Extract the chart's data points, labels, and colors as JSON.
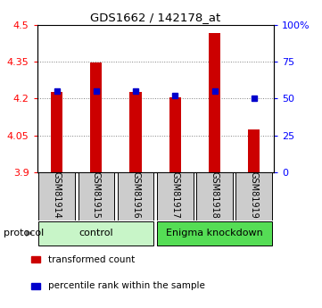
{
  "title": "GDS1662 / 142178_at",
  "samples": [
    "GSM81914",
    "GSM81915",
    "GSM81916",
    "GSM81917",
    "GSM81918",
    "GSM81919"
  ],
  "red_values": [
    4.225,
    4.345,
    4.225,
    4.205,
    4.465,
    4.075
  ],
  "blue_percentiles": [
    55,
    55,
    55,
    52,
    55,
    50
  ],
  "ylim_left": [
    3.9,
    4.5
  ],
  "ylim_right": [
    0,
    100
  ],
  "yticks_left": [
    3.9,
    4.05,
    4.2,
    4.35,
    4.5
  ],
  "ytick_labels_left": [
    "3.9",
    "4.05",
    "4.2",
    "4.35",
    "4.5"
  ],
  "yticks_right": [
    0,
    25,
    50,
    75,
    100
  ],
  "ytick_labels_right": [
    "0",
    "25",
    "50",
    "75",
    "100%"
  ],
  "gridlines": [
    4.05,
    4.2,
    4.35
  ],
  "groups": [
    {
      "label": "control",
      "indices": [
        0,
        1,
        2
      ],
      "color": "#c8f5c8"
    },
    {
      "label": "Enigma knockdown",
      "indices": [
        3,
        4,
        5
      ],
      "color": "#55dd55"
    }
  ],
  "protocol_label": "protocol",
  "bar_color": "#cc0000",
  "marker_color": "#0000cc",
  "bar_width": 0.3,
  "legend_items": [
    {
      "label": "transformed count",
      "color": "#cc0000"
    },
    {
      "label": "percentile rank within the sample",
      "color": "#0000cc"
    }
  ],
  "xticklabel_bg": "#cccccc",
  "baseline": 3.9
}
